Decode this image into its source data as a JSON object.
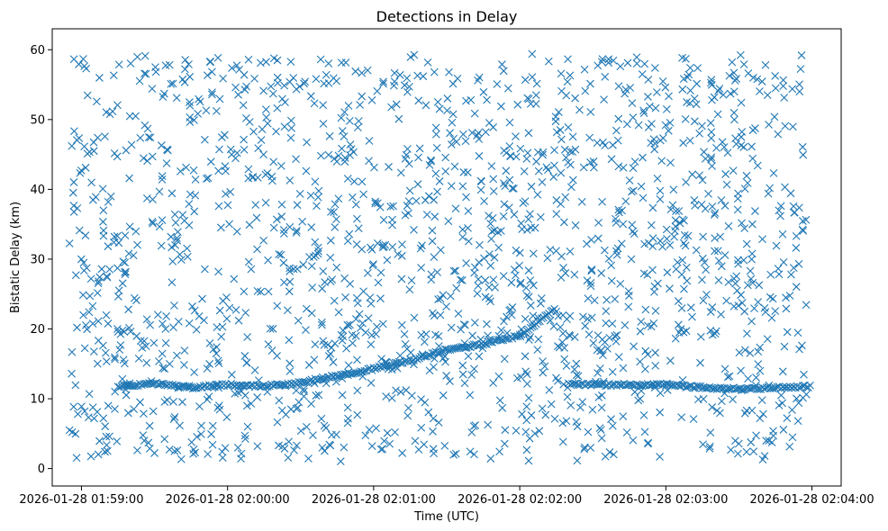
{
  "chart_data": {
    "type": "scatter",
    "title": "Detections in Delay",
    "xlabel": "Time (UTC)",
    "ylabel": "Bistatic Delay (km)",
    "marker": "x",
    "color": "#1f77b4",
    "grid": false,
    "xlim": [
      "2026-01-28 01:58:48",
      "2026-01-28 02:04:12"
    ],
    "ylim": [
      -2.5,
      63
    ],
    "xticks": [
      "2026-01-28 01:59:00",
      "2026-01-28 02:00:00",
      "2026-01-28 02:01:00",
      "2026-01-28 02:02:00",
      "2026-01-28 02:03:00",
      "2026-01-28 02:04:00"
    ],
    "yticks": [
      0,
      10,
      20,
      30,
      40,
      50,
      60
    ],
    "series": [
      {
        "kind": "noise-detections",
        "x_range": [
          "2026-01-28 01:58:55",
          "2026-01-28 02:03:58"
        ],
        "y_range": [
          1,
          59.5
        ],
        "count": 1700
      },
      {
        "kind": "target-track",
        "points": [
          {
            "t": "2026-01-28 01:59:15",
            "y": 11.8
          },
          {
            "t": "2026-01-28 01:59:30",
            "y": 12.2
          },
          {
            "t": "2026-01-28 01:59:45",
            "y": 11.6
          },
          {
            "t": "2026-01-28 02:00:00",
            "y": 12.0
          },
          {
            "t": "2026-01-28 02:00:15",
            "y": 11.8
          },
          {
            "t": "2026-01-28 02:00:30",
            "y": 12.3
          },
          {
            "t": "2026-01-28 02:00:45",
            "y": 13.3
          },
          {
            "t": "2026-01-28 02:01:00",
            "y": 14.3
          },
          {
            "t": "2026-01-28 02:01:15",
            "y": 15.5
          },
          {
            "t": "2026-01-28 02:01:30",
            "y": 17.0
          },
          {
            "t": "2026-01-28 02:01:45",
            "y": 17.8
          },
          {
            "t": "2026-01-28 02:02:00",
            "y": 19.0
          },
          {
            "t": "2026-01-28 02:02:15",
            "y": 23.0
          },
          {
            "t": "2026-01-28 02:02:20",
            "y": 12.2
          },
          {
            "t": "2026-01-28 02:02:30",
            "y": 12.0
          },
          {
            "t": "2026-01-28 02:02:45",
            "y": 12.0
          },
          {
            "t": "2026-01-28 02:03:00",
            "y": 12.0
          },
          {
            "t": "2026-01-28 02:03:15",
            "y": 11.6
          },
          {
            "t": "2026-01-28 02:03:30",
            "y": 11.4
          },
          {
            "t": "2026-01-28 02:03:45",
            "y": 11.6
          },
          {
            "t": "2026-01-28 02:04:00",
            "y": 11.8
          }
        ]
      }
    ]
  }
}
